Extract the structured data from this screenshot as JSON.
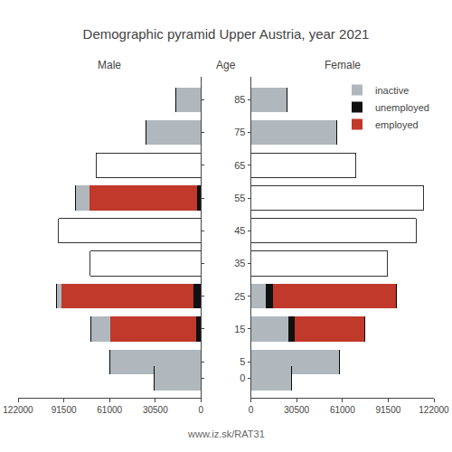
{
  "title": "Demographic pyramid Upper Austria, year 2021",
  "annotations": [
    "www.iz.sk/RAT31"
  ],
  "chart_data": [
    {
      "type": "bar",
      "orientation": "horizontal",
      "stacked": true,
      "title": "Male",
      "categories": [
        85,
        75,
        65,
        55,
        45,
        35,
        25,
        15,
        5,
        0
      ],
      "series": [
        {
          "name": "unemployed",
          "color": "#111111",
          "values": [
            0,
            0,
            0,
            2500,
            0,
            0,
            5000,
            3500,
            0,
            0
          ]
        },
        {
          "name": "employed",
          "color": "#c0392b",
          "values": [
            0,
            0,
            0,
            72000,
            0,
            0,
            88000,
            57000,
            0,
            0
          ]
        },
        {
          "name": "inactive",
          "color": "#b0b8be",
          "values": [
            17000,
            37000,
            0,
            9000,
            0,
            0,
            3500,
            13000,
            61000,
            31000
          ]
        },
        {
          "color": "#ffffff",
          "values": [
            0,
            0,
            70000,
            0,
            95000,
            74000,
            0,
            0,
            0,
            0
          ]
        }
      ],
      "xlim": [
        0,
        122000
      ],
      "xticks": [
        0,
        30500,
        61000,
        91500,
        122000
      ],
      "ylim": [
        -6,
        92
      ],
      "yticks": [
        85,
        75,
        65,
        55,
        45,
        35,
        25,
        15,
        5,
        0
      ],
      "grid": false,
      "tick_labels": "x"
    },
    {
      "type": "bar",
      "orientation": "horizontal",
      "stacked": true,
      "title": "Female",
      "ylabel": "Age",
      "categories": [
        85,
        75,
        65,
        55,
        45,
        35,
        25,
        15,
        5,
        0
      ],
      "series": [
        {
          "name": "inactive",
          "color": "#b0b8be",
          "values": [
            24000,
            57000,
            0,
            0,
            0,
            0,
            10000,
            25000,
            59000,
            27000
          ]
        },
        {
          "name": "unemployed",
          "color": "#111111",
          "values": [
            0,
            0,
            0,
            0,
            0,
            0,
            5000,
            4000,
            0,
            0
          ]
        },
        {
          "name": "employed",
          "color": "#c0392b",
          "values": [
            0,
            0,
            0,
            0,
            0,
            0,
            82000,
            47000,
            0,
            0
          ]
        },
        {
          "color": "#ffffff",
          "values": [
            0,
            0,
            70000,
            115000,
            110000,
            91000,
            0,
            0,
            0,
            0
          ]
        }
      ],
      "xlim": [
        0,
        122000
      ],
      "xticks": [
        0,
        30500,
        61000,
        91500,
        122000
      ],
      "ylim": [
        -6,
        92
      ],
      "yticks": [
        85,
        75,
        65,
        55,
        45,
        35,
        25,
        15,
        5,
        0
      ],
      "grid": false,
      "legend": "upper right"
    }
  ]
}
